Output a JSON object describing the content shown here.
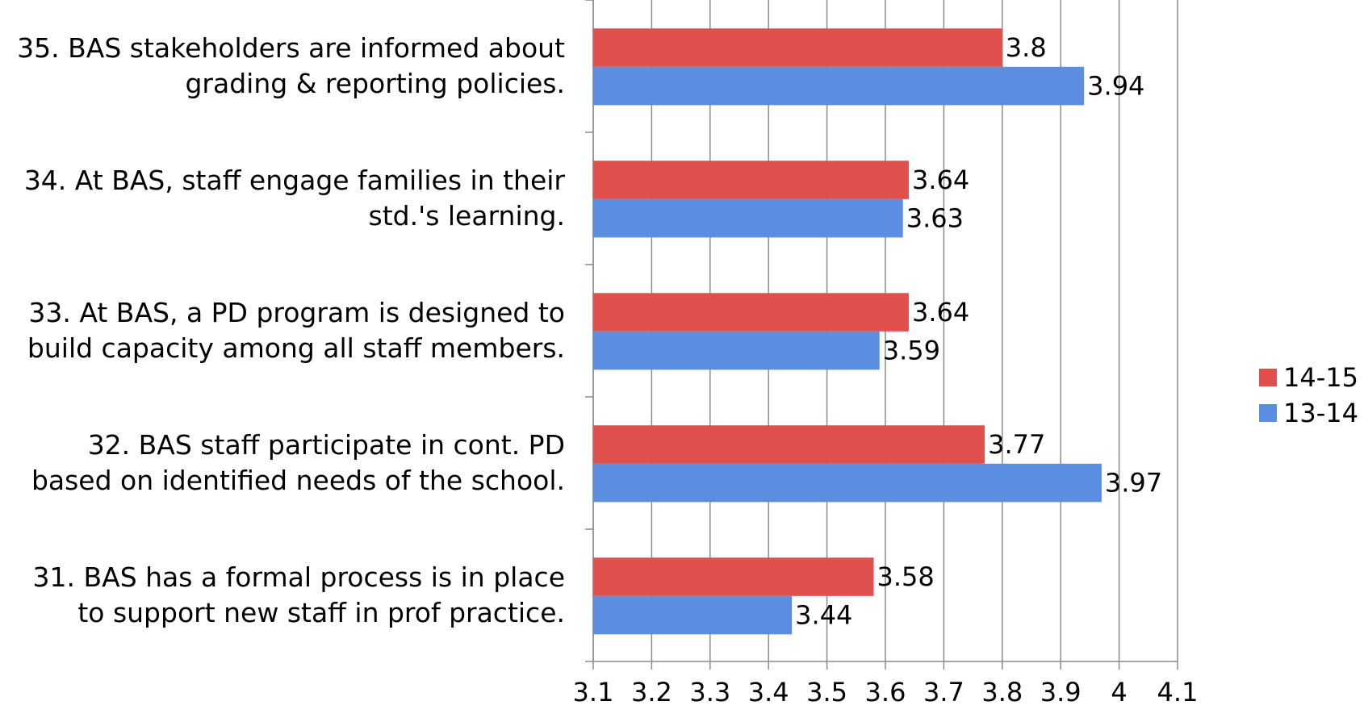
{
  "chart_data": {
    "type": "bar",
    "orientation": "horizontal",
    "categories": [
      "35. BAS stakeholders are informed about grading & reporting policies.",
      "34. At BAS, staff engage families in their std.'s learning.",
      "33. At BAS, a PD program is designed to build capacity among all staff members.",
      "32. BAS staff participate in cont. PD based on identified needs of the school.",
      "31. BAS has a formal process is in place to support new staff in prof practice."
    ],
    "series": [
      {
        "name": "14-15",
        "color": "#e0504d",
        "values": [
          3.8,
          3.64,
          3.64,
          3.77,
          3.58
        ]
      },
      {
        "name": "13-14",
        "color": "#5b8ee0",
        "values": [
          3.94,
          3.63,
          3.59,
          3.97,
          3.44
        ]
      }
    ],
    "xlim": [
      3.1,
      4.1
    ],
    "xticks": [
      3.1,
      3.2,
      3.3,
      3.4,
      3.5,
      3.6,
      3.7,
      3.8,
      3.9,
      4,
      4.1
    ],
    "grid": true,
    "legend": "right"
  }
}
